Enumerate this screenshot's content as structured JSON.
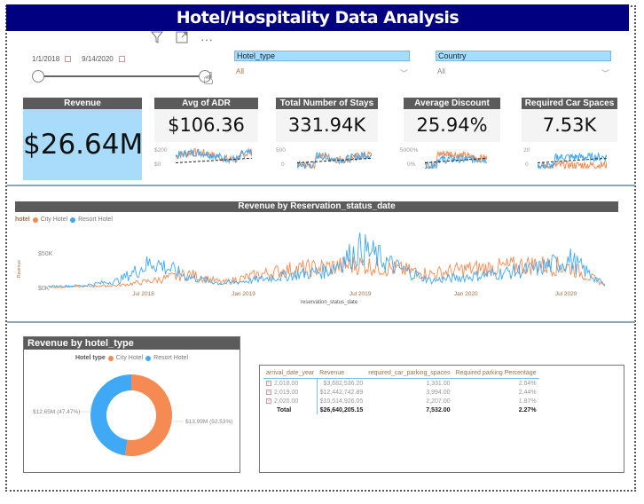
{
  "header": {
    "title": "Hotel/Hospitality Data Analysis"
  },
  "visual_header": {
    "filter_icon": "filter-icon",
    "focus_icon": "focus-mode-icon",
    "more_icon": "more-options-icon",
    "more_label": "···"
  },
  "date_slicer": {
    "start": "1/1/2018",
    "end": "9/14/2020",
    "range_fraction": [
      0.0,
      1.0
    ]
  },
  "slicers": [
    {
      "label": "Hotel_type",
      "value": "All"
    },
    {
      "label": "Country",
      "value": "All"
    }
  ],
  "colors": {
    "city": "#f58a52",
    "resort": "#3fa9f5",
    "navy": "#000080",
    "card_hdr": "#5b5b5b",
    "revenue_bg": "#a9dcfa"
  },
  "kpis": [
    {
      "title": "Revenue",
      "value": "$26.64M"
    },
    {
      "title": "Avg of ADR",
      "value": "$106.36",
      "axis_top": "$200",
      "axis_bottom": "$0"
    },
    {
      "title": "Total Number of Stays",
      "value": "331.94K",
      "axis_top": "500",
      "axis_bottom": "0"
    },
    {
      "title": "Average Discount",
      "value": "25.94%",
      "axis_top": "5000%",
      "axis_bottom": "0%"
    },
    {
      "title": "Required Car Spaces",
      "value": "7.53K",
      "axis_top": "20",
      "axis_bottom": "0"
    }
  ],
  "line_chart": {
    "title": "Revenue by Reservation_status_date",
    "legend_title": "hotel",
    "legend": [
      "City Hotel",
      "Resort Hotel"
    ],
    "y_label": "Revenue",
    "y_ticks": [
      "$50K",
      "$0K"
    ],
    "x_label": "reservation_status_date",
    "x_ticks": [
      "Jul 2018",
      "Jan 2019",
      "Jul 2019",
      "Jan 2020",
      "Jul 2020"
    ]
  },
  "chart_data": {
    "type": "line",
    "title": "Revenue by Reservation_status_date",
    "xlabel": "reservation_status_date",
    "ylabel": "Revenue",
    "ylim": [
      0,
      60000
    ],
    "x": [
      "2018-01",
      "2018-04",
      "2018-06",
      "2018-08",
      "2018-10",
      "2018-12",
      "2019-02",
      "2019-04",
      "2019-06",
      "2019-08",
      "2019-10",
      "2019-12",
      "2020-02",
      "2020-04",
      "2020-06",
      "2020-08",
      "2020-09"
    ],
    "series": [
      {
        "name": "City Hotel",
        "values": [
          1000,
          2000,
          3000,
          8000,
          15000,
          6000,
          14000,
          20000,
          22000,
          25000,
          20000,
          15000,
          20000,
          22000,
          25000,
          22000,
          4000
        ]
      },
      {
        "name": "Resort Hotel",
        "values": [
          2000,
          3000,
          8000,
          28000,
          12000,
          5000,
          9000,
          14000,
          18000,
          42000,
          22000,
          8000,
          12000,
          16000,
          20000,
          30000,
          3000
        ]
      }
    ]
  },
  "donut": {
    "title": "Revenue by hotel_type",
    "legend_title": "Hotel type",
    "legend": [
      "City Hotel",
      "Resort Hotel"
    ],
    "slices": [
      {
        "name": "City Hotel",
        "value": 13.99,
        "label": "$13.99M (52.53%)",
        "percent": 52.53
      },
      {
        "name": "Resort Hotel",
        "value": 12.65,
        "label": "$12.65M (47.47%)",
        "percent": 47.47
      }
    ]
  },
  "table": {
    "columns": [
      "arrival_date_year",
      "Revenue",
      "required_car_parking_spaces",
      "Required parking Percentage"
    ],
    "rows": [
      [
        "2,018.00",
        "$3,682,536.20",
        "1,331.00",
        "2.64%"
      ],
      [
        "2,019.00",
        "$12,442,742.89",
        "3,994.00",
        "2.44%"
      ],
      [
        "2,020.00",
        "$10,514,926.05",
        "2,207.00",
        "1.87%"
      ]
    ],
    "total": [
      "Total",
      "$26,640,205.15",
      "7,532.00",
      "2.27%"
    ]
  }
}
